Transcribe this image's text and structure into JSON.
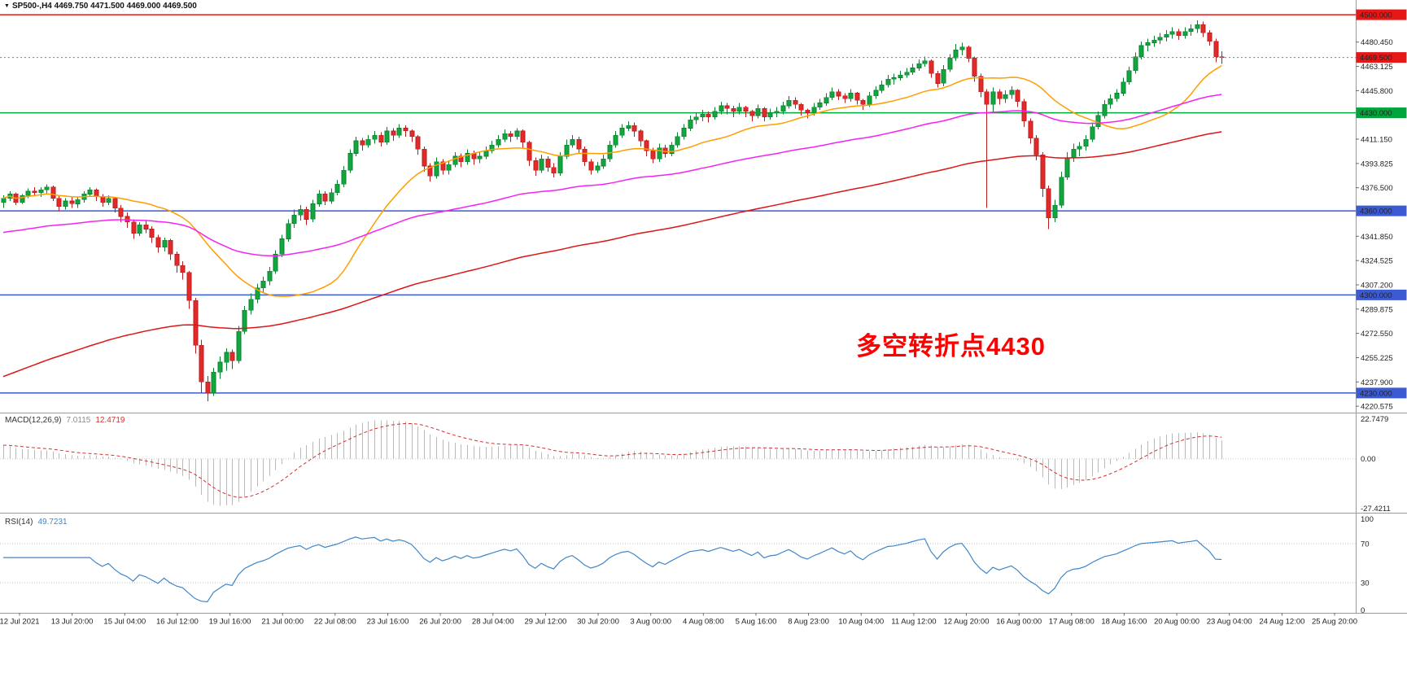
{
  "window": {
    "symbol_marker": "▼",
    "symbol": "SP500-,H4",
    "ohlc": "4469.750 4471.500 4469.000 4469.500"
  },
  "annotation": {
    "text": "多空转折点4430",
    "color": "#ff0000"
  },
  "chart_data": {
    "type": "candlestick",
    "symbol": "SP500-",
    "timeframe": "H4",
    "price_range": [
      4216,
      4510.5
    ],
    "colors": {
      "up": "#12a63e",
      "up_line": "#0a8030",
      "down": "#e32a2a",
      "down_line": "#b91c1c",
      "current_line": "#808080",
      "divider": "#9a9a9a",
      "axis_text": "#222222"
    },
    "current_price": 4469.5,
    "current_price_label": "4469.500",
    "horizontal_levels": [
      {
        "price": 4500,
        "label": "4500.000",
        "color": "#e51717",
        "style": "solid"
      },
      {
        "price": 4430,
        "label": "4430.000",
        "color": "#00a53c",
        "style": "solid"
      },
      {
        "price": 4360,
        "label": "4360.000",
        "color": "#3c5bd2",
        "style": "solid"
      },
      {
        "price": 4300,
        "label": "4300.000",
        "color": "#3c5bd2",
        "style": "solid"
      },
      {
        "price": 4230,
        "label": "4230.000",
        "color": "#3c5bd2",
        "style": "solid"
      }
    ],
    "y_ticks": [
      {
        "label": "4480.450",
        "price": 4480.45
      },
      {
        "label": "4463.125",
        "price": 4463.125
      },
      {
        "label": "4445.800",
        "price": 4445.8
      },
      {
        "label": "4411.150",
        "price": 4411.15
      },
      {
        "label": "4393.825",
        "price": 4393.825
      },
      {
        "label": "4376.500",
        "price": 4376.5
      },
      {
        "label": "4341.850",
        "price": 4341.85
      },
      {
        "label": "4324.525",
        "price": 4324.525
      },
      {
        "label": "4307.200",
        "price": 4307.2
      },
      {
        "label": "4289.875",
        "price": 4289.875
      },
      {
        "label": "4272.550",
        "price": 4272.55
      },
      {
        "label": "4255.225",
        "price": 4255.225
      },
      {
        "label": "4237.900",
        "price": 4237.9
      },
      {
        "label": "4220.575",
        "price": 4220.575
      }
    ],
    "x_labels": [
      "12 Jul 2021",
      "13 Jul 20:00",
      "15 Jul 04:00",
      "16 Jul 12:00",
      "19 Jul 16:00",
      "21 Jul 00:00",
      "22 Jul 08:00",
      "23 Jul 16:00",
      "26 Jul 20:00",
      "28 Jul 04:00",
      "29 Jul 12:00",
      "30 Jul 20:00",
      "3 Aug 00:00",
      "4 Aug 08:00",
      "5 Aug 16:00",
      "8 Aug 23:00",
      "10 Aug 04:00",
      "11 Aug 12:00",
      "12 Aug 20:00",
      "16 Aug 00:00",
      "17 Aug 08:00",
      "18 Aug 16:00",
      "20 Aug 00:00",
      "23 Aug 04:00",
      "24 Aug 12:00",
      "25 Aug 20:00"
    ],
    "moving_averages": [
      {
        "name": "ma-fast-orange",
        "type": "sma",
        "period": 24,
        "color": "#ff9e00"
      },
      {
        "name": "ma-mid-magenta",
        "type": "ema",
        "period": 80,
        "seed": 4344,
        "color": "#f522f5"
      },
      {
        "name": "ma-slow-red",
        "type": "ema",
        "period": 150,
        "seed": 4240,
        "color": "#dd1515"
      }
    ],
    "candles": [
      [
        4366,
        4371,
        4362,
        4369
      ],
      [
        4369,
        4374,
        4367,
        4372
      ],
      [
        4372,
        4373,
        4364,
        4366
      ],
      [
        4366,
        4372,
        4365,
        4371
      ],
      [
        4371,
        4376,
        4369,
        4374
      ],
      [
        4374,
        4377,
        4371,
        4373
      ],
      [
        4373,
        4377,
        4370,
        4375
      ],
      [
        4375,
        4379,
        4372,
        4377
      ],
      [
        4377,
        4378,
        4367,
        4369
      ],
      [
        4369,
        4371,
        4360,
        4363
      ],
      [
        4363,
        4369,
        4361,
        4367
      ],
      [
        4367,
        4370,
        4362,
        4365
      ],
      [
        4365,
        4370,
        4362,
        4368
      ],
      [
        4368,
        4374,
        4366,
        4372
      ],
      [
        4372,
        4377,
        4370,
        4375
      ],
      [
        4375,
        4376,
        4367,
        4370
      ],
      [
        4370,
        4372,
        4363,
        4366
      ],
      [
        4366,
        4371,
        4364,
        4369
      ],
      [
        4369,
        4370,
        4359,
        4362
      ],
      [
        4362,
        4364,
        4352,
        4356
      ],
      [
        4356,
        4359,
        4348,
        4352
      ],
      [
        4352,
        4354,
        4340,
        4344
      ],
      [
        4344,
        4352,
        4342,
        4350
      ],
      [
        4350,
        4353,
        4344,
        4347
      ],
      [
        4347,
        4349,
        4337,
        4341
      ],
      [
        4341,
        4343,
        4330,
        4334
      ],
      [
        4334,
        4341,
        4331,
        4339
      ],
      [
        4339,
        4340,
        4325,
        4329
      ],
      [
        4329,
        4331,
        4316,
        4321
      ],
      [
        4321,
        4324,
        4311,
        4316
      ],
      [
        4316,
        4317,
        4290,
        4296
      ],
      [
        4296,
        4298,
        4258,
        4264
      ],
      [
        4264,
        4268,
        4230,
        4238
      ],
      [
        4238,
        4242,
        4224,
        4230
      ],
      [
        4230,
        4248,
        4228,
        4245
      ],
      [
        4245,
        4256,
        4240,
        4252
      ],
      [
        4252,
        4262,
        4246,
        4259
      ],
      [
        4259,
        4261,
        4247,
        4253
      ],
      [
        4253,
        4278,
        4251,
        4274
      ],
      [
        4274,
        4292,
        4272,
        4289
      ],
      [
        4289,
        4301,
        4286,
        4297
      ],
      [
        4297,
        4308,
        4294,
        4305
      ],
      [
        4305,
        4313,
        4301,
        4310
      ],
      [
        4310,
        4320,
        4307,
        4317
      ],
      [
        4317,
        4332,
        4315,
        4329
      ],
      [
        4329,
        4343,
        4327,
        4340
      ],
      [
        4340,
        4354,
        4338,
        4351
      ],
      [
        4351,
        4361,
        4348,
        4357
      ],
      [
        4357,
        4364,
        4353,
        4361
      ],
      [
        4361,
        4363,
        4350,
        4354
      ],
      [
        4354,
        4368,
        4352,
        4365
      ],
      [
        4365,
        4375,
        4363,
        4372
      ],
      [
        4372,
        4374,
        4364,
        4367
      ],
      [
        4367,
        4376,
        4365,
        4373
      ],
      [
        4373,
        4382,
        4371,
        4379
      ],
      [
        4379,
        4392,
        4377,
        4389
      ],
      [
        4389,
        4404,
        4387,
        4401
      ],
      [
        4401,
        4413,
        4399,
        4410
      ],
      [
        4410,
        4412,
        4403,
        4407
      ],
      [
        4407,
        4414,
        4405,
        4411
      ],
      [
        4411,
        4417,
        4408,
        4414
      ],
      [
        4414,
        4416,
        4406,
        4409
      ],
      [
        4409,
        4420,
        4407,
        4417
      ],
      [
        4417,
        4419,
        4410,
        4414
      ],
      [
        4414,
        4422,
        4412,
        4419
      ],
      [
        4419,
        4421,
        4413,
        4417
      ],
      [
        4417,
        4418,
        4409,
        4413
      ],
      [
        4413,
        4414,
        4400,
        4404
      ],
      [
        4404,
        4406,
        4388,
        4392
      ],
      [
        4392,
        4394,
        4381,
        4385
      ],
      [
        4385,
        4398,
        4383,
        4395
      ],
      [
        4395,
        4397,
        4386,
        4389
      ],
      [
        4389,
        4396,
        4386,
        4393
      ],
      [
        4393,
        4402,
        4391,
        4399
      ],
      [
        4399,
        4401,
        4391,
        4395
      ],
      [
        4395,
        4404,
        4393,
        4401
      ],
      [
        4401,
        4403,
        4393,
        4397
      ],
      [
        4397,
        4402,
        4394,
        4399
      ],
      [
        4399,
        4406,
        4397,
        4403
      ],
      [
        4403,
        4410,
        4401,
        4407
      ],
      [
        4407,
        4414,
        4405,
        4411
      ],
      [
        4411,
        4418,
        4409,
        4415
      ],
      [
        4415,
        4417,
        4409,
        4413
      ],
      [
        4413,
        4419,
        4411,
        4417
      ],
      [
        4417,
        4418,
        4405,
        4409
      ],
      [
        4409,
        4410,
        4392,
        4396
      ],
      [
        4396,
        4398,
        4385,
        4389
      ],
      [
        4389,
        4400,
        4387,
        4397
      ],
      [
        4397,
        4399,
        4388,
        4391
      ],
      [
        4391,
        4394,
        4384,
        4387
      ],
      [
        4387,
        4402,
        4385,
        4399
      ],
      [
        4399,
        4411,
        4397,
        4407
      ],
      [
        4407,
        4414,
        4405,
        4411
      ],
      [
        4411,
        4413,
        4401,
        4404
      ],
      [
        4404,
        4406,
        4392,
        4395
      ],
      [
        4395,
        4397,
        4386,
        4389
      ],
      [
        4389,
        4395,
        4387,
        4392
      ],
      [
        4392,
        4400,
        4390,
        4397
      ],
      [
        4397,
        4410,
        4395,
        4407
      ],
      [
        4407,
        4417,
        4405,
        4414
      ],
      [
        4414,
        4422,
        4412,
        4419
      ],
      [
        4419,
        4424,
        4417,
        4421
      ],
      [
        4421,
        4423,
        4413,
        4417
      ],
      [
        4417,
        4418,
        4406,
        4410
      ],
      [
        4410,
        4411,
        4399,
        4403
      ],
      [
        4403,
        4405,
        4394,
        4397
      ],
      [
        4397,
        4408,
        4395,
        4405
      ],
      [
        4405,
        4407,
        4398,
        4401
      ],
      [
        4401,
        4409,
        4399,
        4407
      ],
      [
        4407,
        4416,
        4405,
        4413
      ],
      [
        4413,
        4422,
        4411,
        4419
      ],
      [
        4419,
        4428,
        4417,
        4425
      ],
      [
        4425,
        4430,
        4422,
        4427
      ],
      [
        4427,
        4432,
        4424,
        4429
      ],
      [
        4429,
        4431,
        4423,
        4427
      ],
      [
        4427,
        4434,
        4425,
        4431
      ],
      [
        4431,
        4438,
        4429,
        4435
      ],
      [
        4435,
        4437,
        4429,
        4433
      ],
      [
        4433,
        4435,
        4427,
        4431
      ],
      [
        4431,
        4437,
        4429,
        4434
      ],
      [
        4434,
        4435,
        4427,
        4431
      ],
      [
        4431,
        4432,
        4424,
        4428
      ],
      [
        4428,
        4436,
        4426,
        4433
      ],
      [
        4433,
        4434,
        4424,
        4427
      ],
      [
        4427,
        4433,
        4425,
        4430
      ],
      [
        4430,
        4434,
        4427,
        4431
      ],
      [
        4431,
        4438,
        4429,
        4435
      ],
      [
        4435,
        4442,
        4433,
        4439
      ],
      [
        4439,
        4441,
        4433,
        4436
      ],
      [
        4436,
        4437,
        4428,
        4432
      ],
      [
        4432,
        4433,
        4426,
        4430
      ],
      [
        4430,
        4437,
        4428,
        4434
      ],
      [
        4434,
        4440,
        4432,
        4437
      ],
      [
        4437,
        4444,
        4435,
        4441
      ],
      [
        4441,
        4448,
        4439,
        4445
      ],
      [
        4445,
        4447,
        4439,
        4442
      ],
      [
        4442,
        4444,
        4437,
        4440
      ],
      [
        4440,
        4447,
        4438,
        4444
      ],
      [
        4444,
        4445,
        4436,
        4439
      ],
      [
        4439,
        4440,
        4432,
        4436
      ],
      [
        4436,
        4445,
        4434,
        4442
      ],
      [
        4442,
        4449,
        4440,
        4446
      ],
      [
        4446,
        4453,
        4444,
        4450
      ],
      [
        4450,
        4457,
        4448,
        4454
      ],
      [
        4454,
        4458,
        4450,
        4455
      ],
      [
        4455,
        4460,
        4453,
        4457
      ],
      [
        4457,
        4462,
        4455,
        4459
      ],
      [
        4459,
        4465,
        4457,
        4462
      ],
      [
        4462,
        4468,
        4460,
        4465
      ],
      [
        4465,
        4470,
        4463,
        4467
      ],
      [
        4467,
        4468,
        4455,
        4458
      ],
      [
        4458,
        4460,
        4448,
        4451
      ],
      [
        4451,
        4464,
        4449,
        4461
      ],
      [
        4461,
        4472,
        4459,
        4469
      ],
      [
        4469,
        4479,
        4467,
        4475
      ],
      [
        4475,
        4480,
        4471,
        4477
      ],
      [
        4477,
        4478,
        4466,
        4469
      ],
      [
        4469,
        4470,
        4452,
        4456
      ],
      [
        4456,
        4458,
        4441,
        4445
      ],
      [
        4445,
        4447,
        4362,
        4436
      ],
      [
        4436,
        4448,
        4430,
        4445
      ],
      [
        4445,
        4447,
        4436,
        4440
      ],
      [
        4440,
        4446,
        4437,
        4443
      ],
      [
        4443,
        4449,
        4440,
        4446
      ],
      [
        4446,
        4447,
        4434,
        4438
      ],
      [
        4438,
        4440,
        4420,
        4424
      ],
      [
        4424,
        4426,
        4408,
        4412
      ],
      [
        4412,
        4414,
        4396,
        4400
      ],
      [
        4400,
        4402,
        4370,
        4376
      ],
      [
        4376,
        4378,
        4347,
        4355
      ],
      [
        4355,
        4368,
        4352,
        4364
      ],
      [
        4364,
        4388,
        4362,
        4384
      ],
      [
        4384,
        4402,
        4382,
        4398
      ],
      [
        4398,
        4408,
        4395,
        4404
      ],
      [
        4404,
        4409,
        4399,
        4406
      ],
      [
        4406,
        4414,
        4403,
        4411
      ],
      [
        4411,
        4423,
        4409,
        4420
      ],
      [
        4420,
        4431,
        4418,
        4428
      ],
      [
        4428,
        4439,
        4426,
        4436
      ],
      [
        4436,
        4443,
        4433,
        4440
      ],
      [
        4440,
        4447,
        4438,
        4444
      ],
      [
        4444,
        4455,
        4442,
        4452
      ],
      [
        4452,
        4463,
        4450,
        4460
      ],
      [
        4460,
        4473,
        4458,
        4470
      ],
      [
        4470,
        4481,
        4468,
        4478
      ],
      [
        4478,
        4483,
        4474,
        4480
      ],
      [
        4480,
        4485,
        4477,
        4482
      ],
      [
        4482,
        4487,
        4479,
        4484
      ],
      [
        4484,
        4489,
        4481,
        4486
      ],
      [
        4486,
        4491,
        4483,
        4488
      ],
      [
        4488,
        4490,
        4482,
        4485
      ],
      [
        4485,
        4491,
        4483,
        4488
      ],
      [
        4488,
        4493,
        4485,
        4490
      ],
      [
        4490,
        4496,
        4487,
        4493
      ],
      [
        4493,
        4495,
        4484,
        4487
      ],
      [
        4487,
        4489,
        4478,
        4481
      ],
      [
        4481,
        4483,
        4466,
        4470
      ],
      [
        4470,
        4474,
        4465,
        4469.5
      ]
    ],
    "macd": {
      "label": "MACD(12,26,9)",
      "main": "7.0115",
      "signal": "12.4719",
      "fast": 12,
      "slow": 26,
      "signal_period": 9,
      "axis_labels": [
        "22.7479",
        "0.00",
        "-27.4211"
      ],
      "hist_color": "#b8b8b8",
      "signal_color": "#d22f2f"
    },
    "rsi": {
      "label": "RSI(14)",
      "value": "49.7231",
      "period": 14,
      "levels": [
        70,
        30
      ],
      "axis_labels": [
        "100",
        "70",
        "30",
        "0"
      ],
      "color": "#3f86c9"
    }
  }
}
